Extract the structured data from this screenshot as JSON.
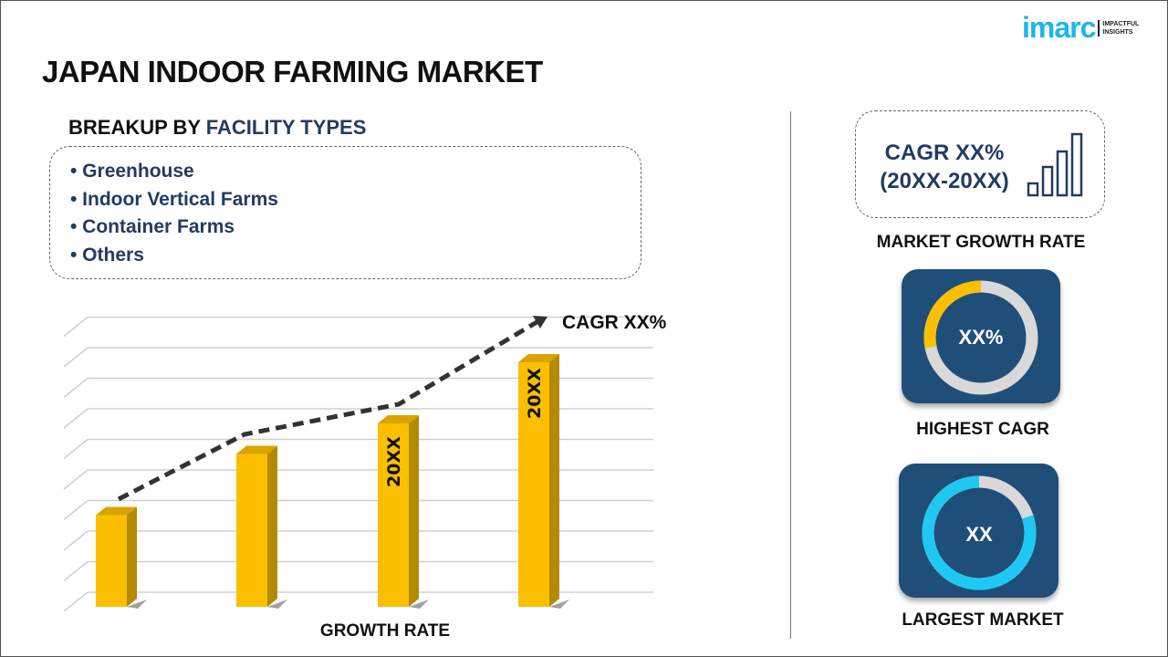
{
  "title": "JAPAN INDOOR FARMING MARKET",
  "logo": {
    "word": "imarc",
    "tagline_1": "IMPACTFUL",
    "tagline_2": "INSIGHTS"
  },
  "breakup": {
    "prefix": "BREAKUP BY ",
    "highlight": "FACILITY TYPES",
    "items": [
      "• Greenhouse",
      "• Indoor Vertical Farms",
      "• Container Farms",
      "• Others"
    ]
  },
  "growth_card": {
    "cagr_line1": "CAGR XX%",
    "cagr_line2": "(20XX-20XX)",
    "label": "MARKET GROWTH RATE"
  },
  "highest_cagr": {
    "value": "XX%",
    "label": "HIGHEST CAGR",
    "fill_percent": 28,
    "fill_color": "#fbbf00"
  },
  "largest_market": {
    "value": "XX",
    "label": "LARGEST MARKET",
    "fill_percent": 80,
    "fill_color": "#1fc8f2"
  },
  "colors": {
    "navy": "#233a64",
    "tile": "#1f4e79",
    "bar": "#fbbf00",
    "bar_side": "#b38a00"
  },
  "chart_data": {
    "type": "bar",
    "categories": [
      "",
      "",
      "",
      ""
    ],
    "values": [
      3,
      5,
      6,
      8
    ],
    "bar_labels": [
      "",
      "",
      "20XX",
      "20XX"
    ],
    "trend_annotation": "CAGR XX%",
    "xlabel": "GROWTH RATE",
    "ylabel": "",
    "ylim": [
      0,
      9
    ],
    "grid": true
  }
}
